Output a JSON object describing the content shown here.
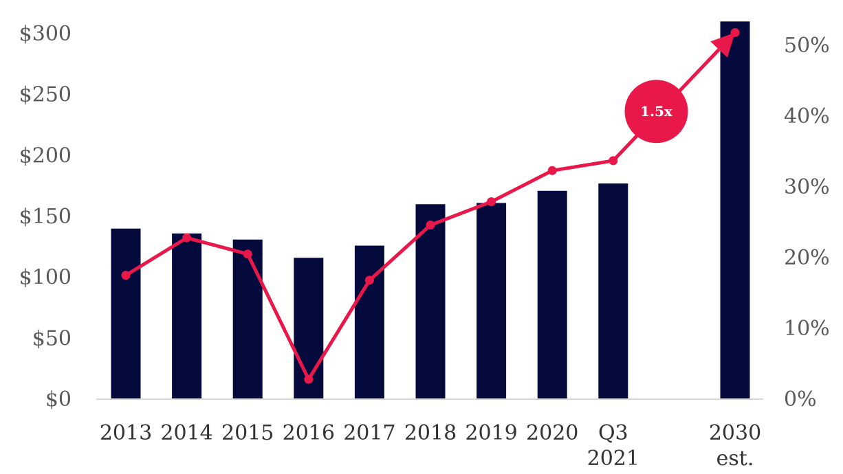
{
  "chart_data": {
    "type": "bar",
    "categories": [
      [
        "2013"
      ],
      [
        "2014"
      ],
      [
        "2015"
      ],
      [
        "2016"
      ],
      [
        "2017"
      ],
      [
        "2018"
      ],
      [
        "2019"
      ],
      [
        "2020"
      ],
      [
        "Q3",
        "2021"
      ],
      [
        ""
      ],
      [
        "2030",
        "est."
      ]
    ],
    "series": [
      {
        "type": "bar",
        "axis": "left",
        "values": [
          140,
          136,
          131,
          116,
          126,
          160,
          161,
          171,
          177,
          null,
          310
        ]
      },
      {
        "type": "line",
        "axis": "right",
        "values": [
          17.5,
          22.8,
          20.5,
          2.8,
          16.8,
          24.6,
          27.9,
          32.3,
          33.7,
          null,
          51.8
        ]
      }
    ],
    "y_left": {
      "min": 0,
      "max": 300,
      "step": 50,
      "tick_labels": [
        "$0",
        "$50",
        "$100",
        "$150",
        "$200",
        "$250",
        "$300"
      ]
    },
    "y_right": {
      "min": 0,
      "max": 50,
      "step": 10,
      "tick_labels": [
        "0%",
        "10%",
        "20%",
        "30%",
        "40%",
        "50%"
      ]
    },
    "annotation": {
      "text": "1.5x"
    },
    "colors": {
      "bar": "#050A3C",
      "line": "#E8194A",
      "axis": "#D9D9D9"
    }
  }
}
